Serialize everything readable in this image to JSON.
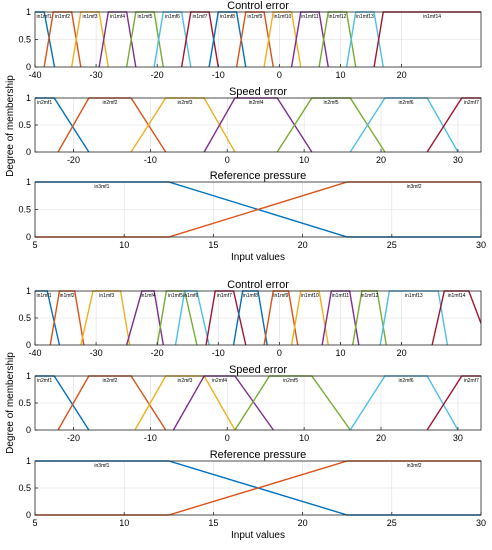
{
  "chart_data": [
    {
      "type": "line",
      "subplots": [
        {
          "title": "Control error",
          "xlim": [
            -40,
            33
          ],
          "ylim": [
            0,
            1
          ],
          "xticks": [
            -40,
            -30,
            -20,
            -10,
            0,
            10,
            20
          ],
          "yticks": [
            0,
            0.5,
            1
          ],
          "ytick_labels": [
            "0",
            "0.5",
            "1"
          ],
          "grid": true,
          "series": [
            {
              "name": "in1mf1",
              "color": "#0072BD",
              "x": [
                -40,
                -38.5,
                -36.8
              ],
              "y": [
                1,
                1,
                0
              ]
            },
            {
              "name": "in1mf2",
              "color": "#D95319",
              "x": [
                -38.5,
                -37,
                -34,
                -32.5
              ],
              "y": [
                0,
                1,
                1,
                0
              ]
            },
            {
              "name": "in1mf3",
              "color": "#EDB120",
              "x": [
                -34,
                -32.5,
                -29.5,
                -28
              ],
              "y": [
                0,
                1,
                1,
                0
              ]
            },
            {
              "name": "in1mf4",
              "color": "#7E2F8E",
              "x": [
                -29.5,
                -28,
                -25,
                -23.5
              ],
              "y": [
                0,
                1,
                1,
                0
              ]
            },
            {
              "name": "in1mf5",
              "color": "#77AC30",
              "x": [
                -25,
                -23.5,
                -20.5,
                -19
              ],
              "y": [
                0,
                1,
                1,
                0
              ]
            },
            {
              "name": "in1mf6",
              "color": "#4DBEEE",
              "x": [
                -20.5,
                -19,
                -16,
                -14.5
              ],
              "y": [
                0,
                1,
                1,
                0
              ]
            },
            {
              "name": "in1mf7",
              "color": "#A2142F",
              "x": [
                -16,
                -14.5,
                -11.5,
                -10
              ],
              "y": [
                0,
                1,
                1,
                0
              ]
            },
            {
              "name": "in1mf8",
              "color": "#0072BD",
              "x": [
                -11.5,
                -10,
                -7,
                -5.5
              ],
              "y": [
                0,
                1,
                1,
                0
              ]
            },
            {
              "name": "in1mf9",
              "color": "#D95319",
              "x": [
                -7,
                -5.5,
                -2.5,
                -1
              ],
              "y": [
                0,
                1,
                1,
                0
              ]
            },
            {
              "name": "in1mf10",
              "color": "#EDB120",
              "x": [
                -2.5,
                -1,
                2,
                3.5
              ],
              "y": [
                0,
                1,
                1,
                0
              ]
            },
            {
              "name": "in1mf11",
              "color": "#7E2F8E",
              "x": [
                2,
                3.5,
                6.5,
                8
              ],
              "y": [
                0,
                1,
                1,
                0
              ]
            },
            {
              "name": "in1mf12",
              "color": "#77AC30",
              "x": [
                6.5,
                8,
                11,
                12.5
              ],
              "y": [
                0,
                1,
                1,
                0
              ]
            },
            {
              "name": "in1mf13",
              "color": "#4DBEEE",
              "x": [
                11,
                12.5,
                15.5,
                17
              ],
              "y": [
                0,
                1,
                1,
                0
              ]
            },
            {
              "name": "in1mf14",
              "color": "#A2142F",
              "x": [
                15.5,
                17,
                33
              ],
              "y": [
                0,
                1,
                1
              ]
            }
          ]
        },
        {
          "title": "Speed error",
          "xlim": [
            -25,
            33
          ],
          "ylim": [
            0,
            1
          ],
          "xticks": [
            -20,
            -10,
            0,
            10,
            20,
            30
          ],
          "yticks": [
            0,
            0.5,
            1
          ],
          "ytick_labels": [
            "0",
            "0.5",
            "1"
          ],
          "grid": true,
          "series": [
            {
              "name": "in2mf1",
              "color": "#0072BD",
              "x": [
                -25,
                -22.5,
                -18
              ],
              "y": [
                1,
                1,
                0
              ]
            },
            {
              "name": "in2mf2",
              "color": "#D95319",
              "x": [
                -22,
                -18,
                -12.5,
                -8
              ],
              "y": [
                0,
                1,
                1,
                0
              ]
            },
            {
              "name": "in2mf3",
              "color": "#EDB120",
              "x": [
                -12.5,
                -8,
                -3,
                1
              ],
              "y": [
                0,
                1,
                1,
                0
              ]
            },
            {
              "name": "in2mf4",
              "color": "#7E2F8E",
              "x": [
                -3,
                1,
                6.5,
                11
              ],
              "y": [
                0,
                1,
                1,
                0
              ]
            },
            {
              "name": "in2mf5",
              "color": "#77AC30",
              "x": [
                6.5,
                11,
                16,
                20.5
              ],
              "y": [
                0,
                1,
                1,
                0
              ]
            },
            {
              "name": "in2mf6",
              "color": "#4DBEEE",
              "x": [
                16,
                20.5,
                26,
                30
              ],
              "y": [
                0,
                1,
                1,
                0
              ]
            },
            {
              "name": "in2mf7",
              "color": "#A2142F",
              "x": [
                26,
                30.5,
                33
              ],
              "y": [
                0,
                1,
                1
              ]
            }
          ]
        },
        {
          "title": "Reference pressure",
          "xlabel": "Input values",
          "xlim": [
            5,
            30
          ],
          "ylim": [
            0,
            1
          ],
          "xticks": [
            5,
            10,
            15,
            20,
            25,
            30
          ],
          "yticks": [
            0,
            0.5,
            1
          ],
          "ytick_labels": [
            "0",
            "0.5",
            "1"
          ],
          "grid": true,
          "series": [
            {
              "name": "in3mf1",
              "color": "#0072BD",
              "x": [
                5,
                12.5,
                22.5,
                30
              ],
              "y": [
                1,
                1,
                0,
                0
              ]
            },
            {
              "name": "in3mf2",
              "color": "#D95319",
              "x": [
                5,
                12.5,
                22.5,
                30
              ],
              "y": [
                0,
                0,
                1,
                1
              ]
            }
          ]
        }
      ],
      "ylabel": "Degree of membership"
    },
    {
      "type": "line",
      "subplots": [
        {
          "title": "Control error",
          "xlim": [
            -40,
            33
          ],
          "ylim": [
            0,
            1
          ],
          "xticks": [
            -40,
            -30,
            -20,
            -10,
            0,
            10,
            20
          ],
          "yticks": [
            0,
            0.5,
            1
          ],
          "ytick_labels": [
            "0",
            "0.5",
            "1"
          ],
          "grid": true,
          "series": [
            {
              "name": "in1mf1",
              "color": "#0072BD",
              "x": [
                -40,
                -38,
                -36
              ],
              "y": [
                1,
                1,
                0
              ]
            },
            {
              "name": "in1mf2",
              "color": "#D95319",
              "x": [
                -37.5,
                -36,
                -33.5,
                -32
              ],
              "y": [
                0,
                1,
                1,
                0
              ]
            },
            {
              "name": "in1mf3",
              "color": "#EDB120",
              "x": [
                -32.5,
                -30.5,
                -26,
                -24.5
              ],
              "y": [
                0,
                1,
                1,
                0
              ]
            },
            {
              "name": "in1mf4",
              "color": "#7E2F8E",
              "x": [
                -25,
                -22.5,
                -20.5,
                -19
              ],
              "y": [
                0,
                1,
                1,
                0
              ]
            },
            {
              "name": "in1mf5",
              "color": "#77AC30",
              "x": [
                -20,
                -18.5,
                -15.5,
                -13.5
              ],
              "y": [
                0,
                1,
                1,
                0
              ]
            },
            {
              "name": "in1mf6",
              "color": "#4DBEEE",
              "x": [
                -17,
                -15.5,
                -13.5,
                -11.5
              ],
              "y": [
                0,
                1,
                1,
                0
              ]
            },
            {
              "name": "in1mf7",
              "color": "#A2142F",
              "x": [
                -12,
                -10.5,
                -7.5,
                -5.5
              ],
              "y": [
                0,
                1,
                1,
                0
              ]
            },
            {
              "name": "in1mf8",
              "color": "#0072BD",
              "x": [
                -7.5,
                -6,
                -3.5,
                -2
              ],
              "y": [
                0,
                1,
                1,
                0
              ]
            },
            {
              "name": "in1mf9",
              "color": "#D95319",
              "x": [
                -2.5,
                -1,
                1.5,
                3
              ],
              "y": [
                0,
                1,
                1,
                0
              ]
            },
            {
              "name": "in1mf10",
              "color": "#EDB120",
              "x": [
                2,
                3.5,
                6.5,
                8
              ],
              "y": [
                0,
                1,
                1,
                0
              ]
            },
            {
              "name": "in1mf11",
              "color": "#7E2F8E",
              "x": [
                7,
                8.5,
                11.5,
                13
              ],
              "y": [
                0,
                1,
                1,
                0
              ]
            },
            {
              "name": "in1mf12",
              "color": "#77AC30",
              "x": [
                12,
                13.5,
                16,
                17.5
              ],
              "y": [
                0,
                1,
                1,
                0
              ]
            },
            {
              "name": "in1mf13",
              "color": "#4DBEEE",
              "x": [
                16.5,
                18,
                26,
                27.5
              ],
              "y": [
                0,
                1,
                1,
                0
              ]
            },
            {
              "name": "in1mf14",
              "color": "#A2142F",
              "x": [
                25,
                27,
                31,
                33
              ],
              "y": [
                0,
                1,
                1,
                0.4
              ]
            }
          ]
        },
        {
          "title": "Speed error",
          "xlim": [
            -25,
            33
          ],
          "ylim": [
            0,
            1
          ],
          "xticks": [
            -20,
            -10,
            0,
            10,
            20,
            30
          ],
          "yticks": [
            0,
            0.5,
            1
          ],
          "ytick_labels": [
            "0",
            "0.5",
            "1"
          ],
          "grid": true,
          "series": [
            {
              "name": "in2mf1",
              "color": "#0072BD",
              "x": [
                -25,
                -22.5,
                -18
              ],
              "y": [
                1,
                1,
                0
              ]
            },
            {
              "name": "in2mf2",
              "color": "#D95319",
              "x": [
                -22,
                -18,
                -12.5,
                -8
              ],
              "y": [
                0,
                1,
                1,
                0
              ]
            },
            {
              "name": "in2mf3",
              "color": "#EDB120",
              "x": [
                -12,
                -8,
                -3,
                1
              ],
              "y": [
                0,
                1,
                1,
                0
              ]
            },
            {
              "name": "in2mf4",
              "color": "#7E2F8E",
              "x": [
                -7,
                -3,
                1,
                6
              ],
              "y": [
                0,
                1,
                1,
                0
              ]
            },
            {
              "name": "in2mf5",
              "color": "#77AC30",
              "x": [
                1,
                5.5,
                11,
                16
              ],
              "y": [
                0,
                1,
                1,
                0
              ]
            },
            {
              "name": "in2mf6",
              "color": "#4DBEEE",
              "x": [
                16,
                20.5,
                26,
                30
              ],
              "y": [
                0,
                1,
                1,
                0
              ]
            },
            {
              "name": "in2mf7",
              "color": "#A2142F",
              "x": [
                26,
                30.5,
                33
              ],
              "y": [
                0,
                1,
                1
              ]
            }
          ]
        },
        {
          "title": "Reference pressure",
          "xlabel": "Input values",
          "xlim": [
            5,
            30
          ],
          "ylim": [
            0,
            1
          ],
          "xticks": [
            5,
            10,
            15,
            20,
            25,
            30
          ],
          "yticks": [
            0,
            0.5,
            1
          ],
          "ytick_labels": [
            "0",
            "0.5",
            "1"
          ],
          "grid": true,
          "series": [
            {
              "name": "in3mf1",
              "color": "#0072BD",
              "x": [
                5,
                12.5,
                22.5,
                30
              ],
              "y": [
                1,
                1,
                0,
                0
              ]
            },
            {
              "name": "in3mf2",
              "color": "#D95319",
              "x": [
                5,
                12.5,
                22.5,
                30
              ],
              "y": [
                0,
                0,
                1,
                1
              ]
            }
          ]
        }
      ],
      "ylabel": "Degree of membership"
    }
  ]
}
